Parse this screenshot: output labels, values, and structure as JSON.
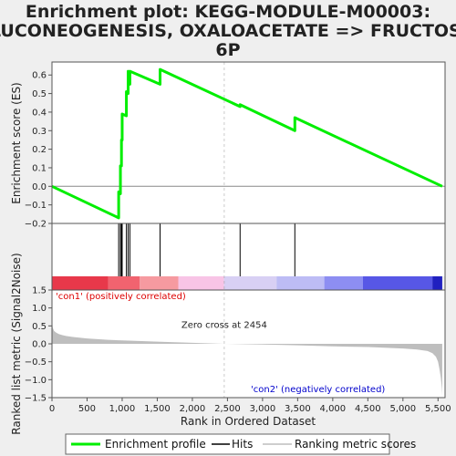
{
  "chart_data": {
    "type": "line",
    "title_lines": [
      "Enrichment plot: KEGG-MODULE-M00003:",
      "GLUCONEOGENESIS, OXALOACETATE => FRUCTOSE-",
      "6P"
    ],
    "xlabel": "Rank in Ordered Dataset",
    "xlim": [
      0,
      5600
    ],
    "x_ticks": [
      0,
      500,
      1000,
      1500,
      2000,
      2500,
      3000,
      3500,
      4000,
      4500,
      5000,
      5500
    ],
    "x_tick_labels": [
      "0",
      "500",
      "1,000",
      "1,500",
      "2,000",
      "2,500",
      "3,000",
      "3,500",
      "4,000",
      "4,500",
      "5,000",
      "5,500"
    ],
    "es_panel": {
      "ylabel": "Enrichment score (ES)",
      "ylim": [
        -0.2,
        0.67
      ],
      "y_ticks": [
        -0.2,
        -0.1,
        0.0,
        0.1,
        0.2,
        0.3,
        0.4,
        0.5,
        0.6
      ],
      "y_tick_labels": [
        "−0.2",
        "−0.1",
        "0.0",
        "0.1",
        "0.2",
        "0.3",
        "0.4",
        "0.5",
        "0.6"
      ],
      "series": {
        "name": "Enrichment profile",
        "color": "#00ee00",
        "x": [
          0,
          950,
          950,
          975,
          975,
          990,
          990,
          1000,
          1000,
          1060,
          1060,
          1085,
          1085,
          1110,
          1110,
          1540,
          1540,
          2680,
          2680,
          3460,
          3460,
          5560
        ],
        "y": [
          0.0,
          -0.17,
          -0.03,
          -0.04,
          0.11,
          0.11,
          0.25,
          0.25,
          0.39,
          0.38,
          0.51,
          0.5,
          0.62,
          0.55,
          0.62,
          0.55,
          0.63,
          0.43,
          0.44,
          0.3,
          0.37,
          0.0
        ]
      }
    },
    "hits_panel": {
      "hit_positions": [
        950,
        975,
        990,
        1000,
        1060,
        1085,
        1110,
        1540,
        2680,
        3460
      ],
      "hit_color": "#000000"
    },
    "colorbar": {
      "segments": [
        {
          "end": 800,
          "color": "#e8384a"
        },
        {
          "end": 1250,
          "color": "#f1636f"
        },
        {
          "end": 1800,
          "color": "#f69aa0"
        },
        {
          "end": 2450,
          "color": "#f8c4e6"
        },
        {
          "end": 3200,
          "color": "#d8d0f4"
        },
        {
          "end": 3880,
          "color": "#bdbcf5"
        },
        {
          "end": 4430,
          "color": "#8d8ef2"
        },
        {
          "end": 5420,
          "color": "#5757e6"
        },
        {
          "end": 5560,
          "color": "#2020c0"
        }
      ]
    },
    "rank_panel": {
      "ylabel": "Ranked list metric (Signal2Noise)",
      "ylim": [
        -1.5,
        1.5
      ],
      "y_ticks": [
        -1.5,
        -1.0,
        -0.5,
        0.0,
        0.5,
        1.0,
        1.5
      ],
      "y_tick_labels": [
        "−1.5",
        "−1.0",
        "−0.5",
        "0.0",
        "0.5",
        "1.0",
        "1.5"
      ],
      "metric_x": [
        0,
        10,
        30,
        60,
        100,
        150,
        200,
        300,
        500,
        800,
        1100,
        1500,
        2000,
        2454,
        3000,
        3500,
        4000,
        4500,
        5000,
        5200,
        5350,
        5420,
        5470,
        5500,
        5520,
        5540,
        5555,
        5560
      ],
      "metric_y": [
        0.72,
        0.45,
        0.36,
        0.31,
        0.27,
        0.24,
        0.22,
        0.19,
        0.15,
        0.11,
        0.09,
        0.06,
        0.03,
        0.0,
        -0.02,
        -0.04,
        -0.07,
        -0.09,
        -0.13,
        -0.16,
        -0.2,
        -0.26,
        -0.36,
        -0.5,
        -0.7,
        -0.95,
        -1.25,
        -1.45
      ],
      "fill_color": "#bebebe",
      "zero_cross_text": "Zero cross at 2454",
      "zero_cross_rank": 2454,
      "pos_label": "'con1' (positively correlated)",
      "pos_color": "#dd0000",
      "neg_label": "'con2' (negatively correlated)",
      "neg_color": "#0000cc"
    },
    "legend": {
      "items": [
        {
          "label": "Enrichment profile",
          "color": "#00ee00"
        },
        {
          "label": "Hits",
          "color": "#000000"
        },
        {
          "label": "Ranking metric scores",
          "color": "#bebebe"
        }
      ]
    }
  }
}
